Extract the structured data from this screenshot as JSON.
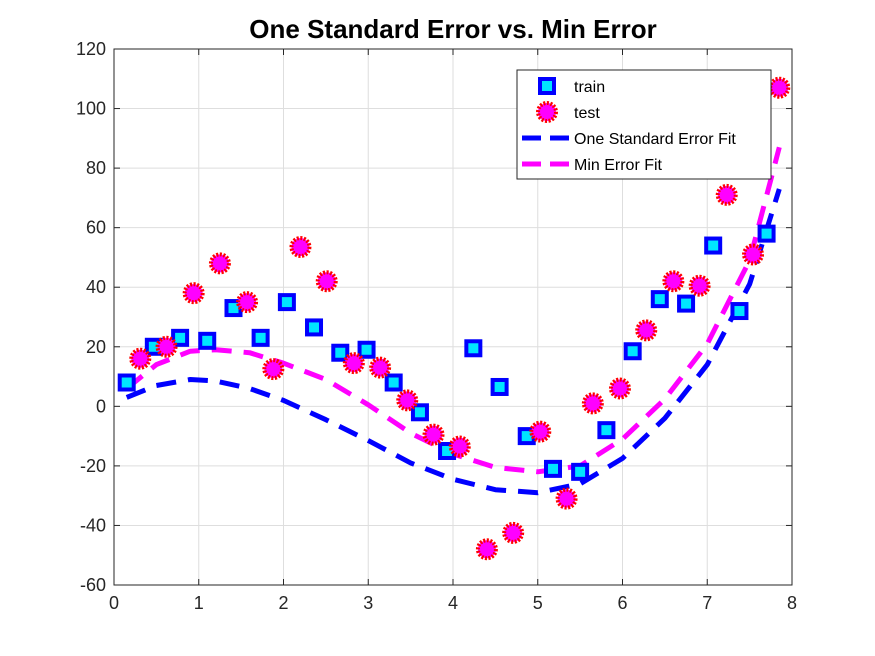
{
  "chart_data": {
    "type": "scatter",
    "title": "One Standard Error vs. Min Error",
    "xlabel": "",
    "ylabel": "",
    "xlim": [
      0,
      8
    ],
    "ylim": [
      -60,
      120
    ],
    "xticks": [
      0,
      1,
      2,
      3,
      4,
      5,
      6,
      7,
      8
    ],
    "yticks": [
      -60,
      -40,
      -20,
      0,
      20,
      40,
      60,
      80,
      100,
      120
    ],
    "grid": true,
    "legend_position": "top-right",
    "series": [
      {
        "name": "train",
        "kind": "scatter",
        "marker": "square",
        "fill": "#00e5ff",
        "stroke": "#0000ff",
        "points": [
          [
            0.15,
            8
          ],
          [
            0.47,
            20
          ],
          [
            0.78,
            23
          ],
          [
            1.1,
            22
          ],
          [
            1.41,
            33
          ],
          [
            1.73,
            23
          ],
          [
            2.04,
            35
          ],
          [
            2.36,
            26.5
          ],
          [
            2.67,
            18
          ],
          [
            2.98,
            19
          ],
          [
            3.3,
            8
          ],
          [
            3.61,
            -2
          ],
          [
            3.93,
            -15
          ],
          [
            4.24,
            19.5
          ],
          [
            4.55,
            6.5
          ],
          [
            4.87,
            -10
          ],
          [
            5.18,
            -21
          ],
          [
            5.5,
            -22
          ],
          [
            5.81,
            -8
          ],
          [
            6.12,
            18.5
          ],
          [
            6.44,
            36
          ],
          [
            6.75,
            34.5
          ],
          [
            7.07,
            54
          ],
          [
            7.38,
            32
          ],
          [
            7.7,
            58
          ]
        ]
      },
      {
        "name": "test",
        "kind": "scatter",
        "marker": "circle",
        "fill": "#ff00ff",
        "stroke": "#ff0000",
        "points": [
          [
            0.31,
            16
          ],
          [
            0.62,
            20
          ],
          [
            0.94,
            38
          ],
          [
            1.25,
            48
          ],
          [
            1.57,
            35
          ],
          [
            1.88,
            12.5
          ],
          [
            2.2,
            53.5
          ],
          [
            2.51,
            42
          ],
          [
            2.83,
            14.5
          ],
          [
            3.14,
            13
          ],
          [
            3.46,
            2
          ],
          [
            3.77,
            -9.5
          ],
          [
            4.08,
            -13.5
          ],
          [
            4.4,
            -48
          ],
          [
            4.71,
            -42.5
          ],
          [
            5.03,
            -8.5
          ],
          [
            5.34,
            -31
          ],
          [
            5.65,
            1
          ],
          [
            5.97,
            6
          ],
          [
            6.28,
            25.5
          ],
          [
            6.6,
            42
          ],
          [
            6.91,
            40.5
          ],
          [
            7.23,
            71
          ],
          [
            7.54,
            51
          ],
          [
            7.85,
            107
          ]
        ]
      },
      {
        "name": "One Standard Error Fit",
        "kind": "line",
        "style": "dashed",
        "color": "#0000ff",
        "points": [
          [
            0.15,
            3
          ],
          [
            0.5,
            7
          ],
          [
            0.9,
            9
          ],
          [
            1.2,
            8.5
          ],
          [
            1.6,
            6
          ],
          [
            2.0,
            2
          ],
          [
            2.5,
            -4.5
          ],
          [
            3.0,
            -11.5
          ],
          [
            3.5,
            -19
          ],
          [
            4.0,
            -24.5
          ],
          [
            4.5,
            -28
          ],
          [
            5.0,
            -29
          ],
          [
            5.5,
            -26
          ],
          [
            6.0,
            -17.5
          ],
          [
            6.5,
            -4
          ],
          [
            7.0,
            14
          ],
          [
            7.5,
            41
          ],
          [
            7.85,
            73
          ]
        ]
      },
      {
        "name": "Min Error Fit",
        "kind": "line",
        "style": "dashed",
        "color": "#ff00ff",
        "points": [
          [
            0.15,
            6
          ],
          [
            0.5,
            14
          ],
          [
            0.9,
            18.5
          ],
          [
            1.2,
            19
          ],
          [
            1.6,
            18
          ],
          [
            2.0,
            14.5
          ],
          [
            2.5,
            9
          ],
          [
            3.0,
            0.5
          ],
          [
            3.5,
            -9
          ],
          [
            4.0,
            -16
          ],
          [
            4.5,
            -20.5
          ],
          [
            5.0,
            -22
          ],
          [
            5.5,
            -20
          ],
          [
            6.0,
            -11
          ],
          [
            6.5,
            2.5
          ],
          [
            7.0,
            21
          ],
          [
            7.5,
            49
          ],
          [
            7.85,
            87
          ]
        ]
      }
    ]
  }
}
